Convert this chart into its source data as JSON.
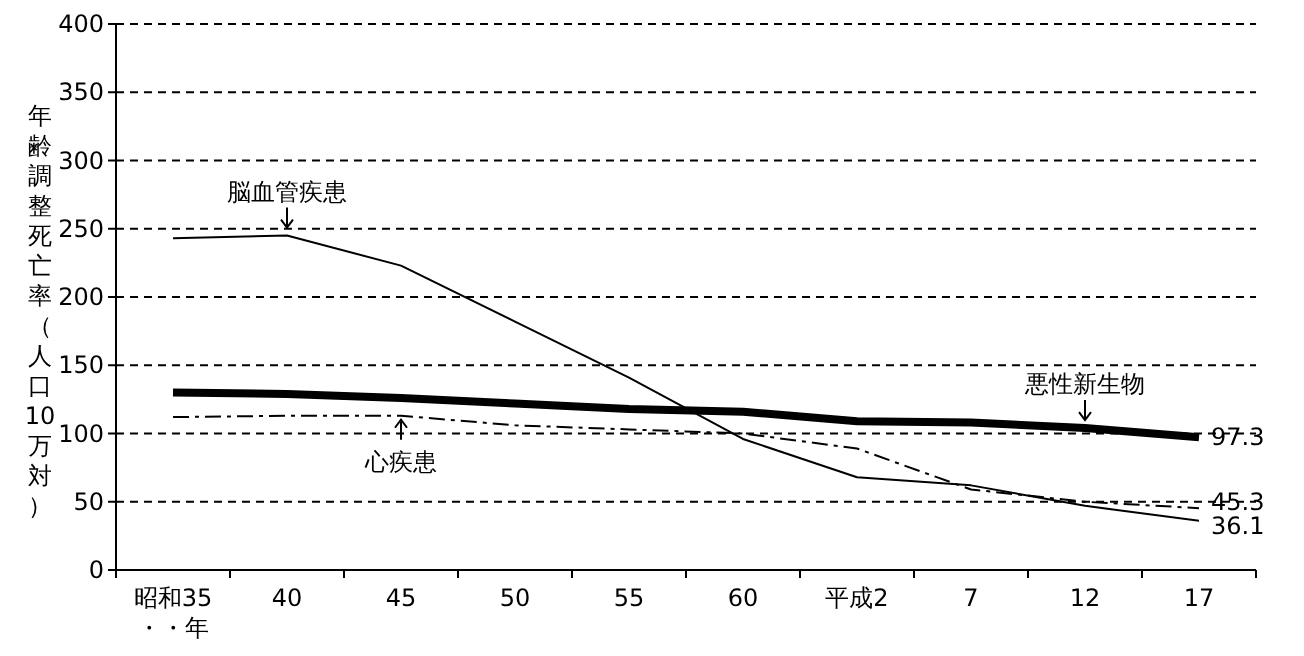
{
  "chart_data": {
    "type": "line",
    "ylabel": "年齢調整死亡率（人口10万対）",
    "categories": [
      "昭和35\n・・年",
      "40",
      "45",
      "50",
      "55",
      "60",
      "平成2",
      "7",
      "12",
      "17"
    ],
    "ylim": [
      0,
      400
    ],
    "yticks": [
      0,
      50,
      100,
      150,
      200,
      250,
      300,
      350,
      400
    ],
    "grid": "y",
    "series": [
      {
        "color": "#000000",
        "line_style": "solid",
        "values": [
          130,
          129,
          126,
          122,
          118,
          116,
          109,
          108,
          104,
          97.3
        ],
        "value_labels": [
          null,
          null,
          null,
          null,
          null,
          null,
          null,
          null,
          null,
          "97.3"
        ]
      },
      {
        "color": "#000000",
        "line_style": "dashed",
        "values": [
          112,
          113,
          113,
          106,
          103,
          100,
          89,
          59,
          50,
          45.3
        ],
        "value_labels": [
          null,
          null,
          null,
          null,
          null,
          null,
          null,
          null,
          null,
          "45.3"
        ]
      },
      {
        "color": "#000000",
        "line_style": "solid",
        "values": [
          243,
          245,
          223,
          182,
          141,
          96,
          68,
          62,
          47,
          36.1
        ],
        "value_labels": [
          null,
          null,
          null,
          null,
          null,
          null,
          null,
          null,
          null,
          "36.1"
        ]
      }
    ],
    "annotations": [
      {
        "text": "脳血管疾患",
        "x": "40",
        "y": 245
      },
      {
        "text": "心疾患",
        "x": "45",
        "y": 113
      },
      {
        "text": "悪性新生物",
        "x": "12",
        "y": 104
      }
    ]
  }
}
